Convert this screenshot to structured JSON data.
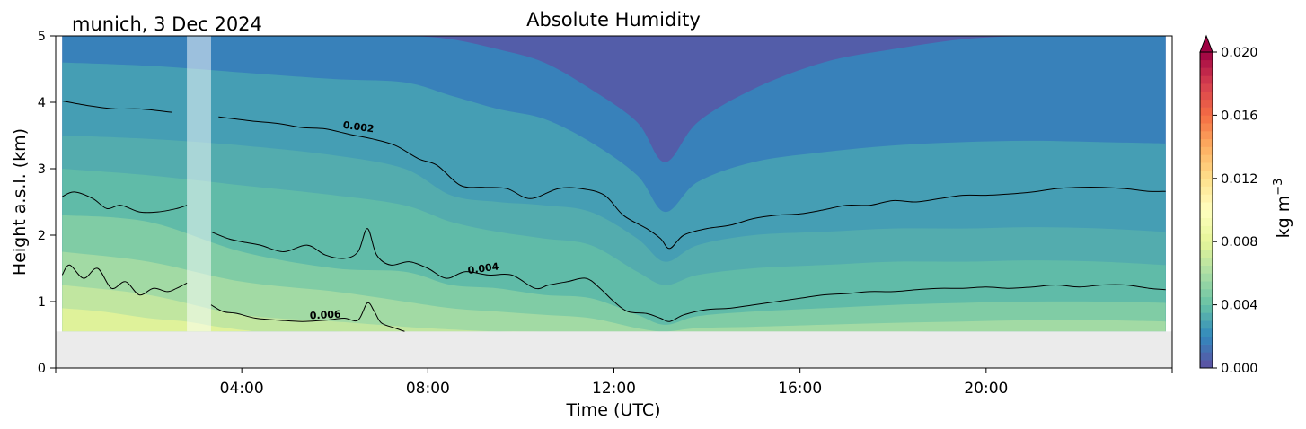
{
  "chart_data": {
    "type": "contourf",
    "title": "Absolute Humidity",
    "subtitle": "munich, 3 Dec 2024",
    "xlabel": "Time (UTC)",
    "ylabel": "Height a.s.l. (km)",
    "xlim": [
      0,
      24
    ],
    "ylim": [
      0,
      5
    ],
    "x_ticks": [
      {
        "x": 4,
        "label": "04:00"
      },
      {
        "x": 8,
        "label": "08:00"
      },
      {
        "x": 12,
        "label": "12:00"
      },
      {
        "x": 16,
        "label": "16:00"
      },
      {
        "x": 20,
        "label": "20:00"
      }
    ],
    "y_ticks": [
      {
        "y": 0,
        "label": "0"
      },
      {
        "y": 1,
        "label": "1"
      },
      {
        "y": 2,
        "label": "2"
      },
      {
        "y": 3,
        "label": "3"
      },
      {
        "y": 4,
        "label": "4"
      },
      {
        "y": 5,
        "label": "5"
      }
    ],
    "data_range_x": [
      0.14,
      23.86
    ],
    "lowest_height_km": 0.55,
    "masked_interval_hours": [
      2.82,
      3.34
    ],
    "no_data_color": "#ebebeb",
    "colormap": "Spectral_r",
    "colorbar": {
      "label": "kg m",
      "label_superscript": "−3",
      "min": 0.0,
      "max": 0.02,
      "extend": "max",
      "ticks": [
        {
          "value": 0.0,
          "label": "0.000"
        },
        {
          "value": 0.004,
          "label": "0.004"
        },
        {
          "value": 0.008,
          "label": "0.008"
        },
        {
          "value": 0.012,
          "label": "0.012"
        },
        {
          "value": 0.016,
          "label": "0.016"
        },
        {
          "value": 0.02,
          "label": "0.020"
        }
      ]
    },
    "contour_lines": [
      {
        "level": 0.002,
        "label": "0.002",
        "label_x": 6.5,
        "label_y": 3.58,
        "x": [
          0.14,
          0.7,
          1.3,
          1.8,
          2.5,
          3.0,
          3.5,
          4.2,
          4.8,
          5.3,
          5.8,
          6.3,
          6.8,
          7.3,
          7.8,
          8.2,
          8.7,
          9.2,
          9.7,
          10.2,
          10.8,
          11.3,
          11.8,
          12.2,
          12.7,
          13.0,
          13.2,
          13.5,
          14.0,
          14.5,
          15.0,
          15.5,
          16.0,
          16.5,
          17.0,
          17.5,
          18.0,
          18.5,
          19.0,
          19.5,
          20.0,
          20.5,
          21.0,
          21.5,
          22.0,
          22.5,
          23.0,
          23.5,
          23.86
        ],
        "y": [
          4.02,
          3.95,
          3.9,
          3.9,
          3.85,
          3.8,
          3.78,
          3.72,
          3.68,
          3.62,
          3.6,
          3.52,
          3.45,
          3.35,
          3.15,
          3.05,
          2.75,
          2.72,
          2.7,
          2.55,
          2.7,
          2.7,
          2.6,
          2.3,
          2.1,
          1.95,
          1.8,
          2.0,
          2.1,
          2.15,
          2.25,
          2.3,
          2.32,
          2.38,
          2.45,
          2.45,
          2.52,
          2.5,
          2.55,
          2.6,
          2.6,
          2.62,
          2.65,
          2.7,
          2.72,
          2.72,
          2.7,
          2.66,
          2.66
        ]
      },
      {
        "level": 0.004,
        "label": "0.004",
        "label_x": 9.2,
        "label_y": 1.45,
        "x": [
          0.14,
          0.4,
          0.8,
          1.1,
          1.4,
          1.8,
          2.2,
          2.6,
          2.82,
          3.34,
          3.7,
          4.0,
          4.4,
          4.9,
          5.4,
          5.8,
          6.2,
          6.5,
          6.7,
          6.9,
          7.2,
          7.6,
          8.0,
          8.4,
          8.8,
          9.3,
          9.8,
          10.3,
          10.6,
          11.0,
          11.4,
          11.7,
          12.0,
          12.3,
          12.7,
          13.0,
          13.2,
          13.5,
          14.0,
          14.5,
          15.0,
          15.5,
          16.0,
          16.5,
          17.0,
          17.5,
          18.0,
          18.5,
          19.0,
          19.5,
          20.0,
          20.5,
          21.0,
          21.5,
          22.0,
          22.5,
          23.0,
          23.5,
          23.86
        ],
        "y": [
          2.58,
          2.65,
          2.55,
          2.4,
          2.45,
          2.35,
          2.35,
          2.4,
          2.45,
          2.05,
          1.95,
          1.9,
          1.85,
          1.75,
          1.85,
          1.7,
          1.65,
          1.75,
          2.1,
          1.7,
          1.55,
          1.6,
          1.5,
          1.35,
          1.45,
          1.4,
          1.4,
          1.2,
          1.25,
          1.3,
          1.35,
          1.2,
          1.0,
          0.85,
          0.82,
          0.75,
          0.7,
          0.8,
          0.88,
          0.9,
          0.95,
          1.0,
          1.05,
          1.1,
          1.12,
          1.15,
          1.15,
          1.18,
          1.2,
          1.2,
          1.22,
          1.2,
          1.22,
          1.25,
          1.22,
          1.25,
          1.25,
          1.2,
          1.18
        ]
      },
      {
        "level": 0.006,
        "label": "0.006",
        "label_x": 5.8,
        "label_y": 0.75,
        "x": [
          0.14,
          0.3,
          0.6,
          0.9,
          1.2,
          1.5,
          1.8,
          2.1,
          2.4,
          2.6,
          2.82,
          3.34,
          3.6,
          3.9,
          4.3,
          4.8,
          5.3,
          5.8,
          6.2,
          6.5,
          6.7,
          6.85,
          7.0,
          7.3,
          7.5
        ],
        "y": [
          1.4,
          1.55,
          1.35,
          1.5,
          1.2,
          1.3,
          1.1,
          1.2,
          1.15,
          1.2,
          1.28,
          0.95,
          0.85,
          0.82,
          0.75,
          0.72,
          0.7,
          0.72,
          0.75,
          0.72,
          0.98,
          0.85,
          0.68,
          0.6,
          0.55
        ]
      }
    ],
    "filled_bands": [
      {
        "upper_value": 0.0015,
        "x": [
          0.14,
          2,
          4,
          6,
          7.5,
          8.5,
          9.5,
          10.5,
          11.5,
          12.5,
          13.1,
          13.8,
          15,
          16.5,
          18,
          19.5,
          21,
          22.5,
          23.86
        ],
        "y": [
          5.0,
          5.0,
          5.0,
          5.0,
          5.0,
          4.95,
          4.8,
          4.6,
          4.2,
          3.7,
          3.1,
          3.7,
          4.2,
          4.6,
          4.8,
          4.95,
          5.0,
          5.0,
          5.0
        ]
      },
      {
        "upper_value": 0.0025,
        "x": [
          0.14,
          2,
          4,
          6,
          7.5,
          8.5,
          9.5,
          10.5,
          11.5,
          12.5,
          13.1,
          13.8,
          15,
          16.5,
          18,
          19.5,
          21,
          22.5,
          23.86
        ],
        "y": [
          4.6,
          4.55,
          4.45,
          4.35,
          4.3,
          4.1,
          3.9,
          3.75,
          3.4,
          2.9,
          2.35,
          2.8,
          3.1,
          3.25,
          3.35,
          3.4,
          3.42,
          3.4,
          3.38
        ]
      },
      {
        "upper_value": 0.003,
        "x": [
          0.14,
          2,
          4,
          6,
          7.5,
          8.5,
          9.5,
          10.5,
          11.5,
          12.5,
          13.1,
          13.8,
          15,
          16.5,
          18,
          19.5,
          21,
          22.5,
          23.86
        ],
        "y": [
          3.5,
          3.45,
          3.35,
          3.2,
          3.0,
          2.6,
          2.5,
          2.45,
          2.35,
          1.95,
          1.6,
          1.85,
          2.0,
          2.05,
          2.1,
          2.1,
          2.12,
          2.1,
          2.05
        ]
      },
      {
        "upper_value": 0.0035,
        "x": [
          0.14,
          2,
          4,
          6,
          7.5,
          8.5,
          9.5,
          10.5,
          11.5,
          12.5,
          13.1,
          13.8,
          15,
          16.5,
          18,
          19.5,
          21,
          22.5,
          23.86
        ],
        "y": [
          3.0,
          2.9,
          2.75,
          2.6,
          2.45,
          2.2,
          2.05,
          1.95,
          1.85,
          1.45,
          1.25,
          1.4,
          1.5,
          1.55,
          1.6,
          1.6,
          1.62,
          1.6,
          1.55
        ]
      },
      {
        "upper_value": 0.0045,
        "x": [
          0.14,
          2,
          4,
          6,
          7.5,
          8.5,
          9.5,
          10.5,
          11.5,
          12.5,
          13.1,
          13.8,
          15,
          16.5,
          18,
          19.5,
          21,
          22.5,
          23.86
        ],
        "y": [
          2.3,
          2.2,
          1.75,
          1.5,
          1.45,
          1.25,
          1.2,
          1.1,
          1.05,
          0.8,
          0.65,
          0.78,
          0.85,
          0.9,
          0.95,
          0.98,
          1.0,
          1.0,
          0.98
        ]
      },
      {
        "upper_value": 0.0055,
        "x": [
          0.14,
          2,
          4,
          6,
          7.5,
          8.5,
          9.5,
          10.5,
          11.5,
          12.5,
          13.1,
          13.8,
          15,
          16.5,
          18,
          19.5,
          21,
          22.5,
          23.86
        ],
        "y": [
          1.75,
          1.6,
          1.3,
          1.15,
          1.0,
          0.9,
          0.85,
          0.8,
          0.75,
          0.6,
          0.55,
          0.6,
          0.62,
          0.65,
          0.68,
          0.7,
          0.72,
          0.72,
          0.7
        ]
      },
      {
        "upper_value": 0.0065,
        "x": [
          0.14,
          2,
          4,
          6,
          7.5,
          8.5,
          9.5,
          10.5,
          11.5,
          12.5,
          13.1,
          13.8,
          15,
          16.5,
          18,
          19.5,
          21,
          22.5,
          23.86
        ],
        "y": [
          1.25,
          1.1,
          0.8,
          0.7,
          0.62,
          0.58,
          0.55,
          0.55,
          0.55,
          0.55,
          0.55,
          0.55,
          0.55,
          0.55,
          0.55,
          0.55,
          0.55,
          0.55,
          0.55
        ]
      },
      {
        "upper_value": 0.0075,
        "x": [
          0.14,
          1,
          2,
          2.8,
          3.5,
          4.2,
          5,
          23.86
        ],
        "y": [
          0.9,
          0.85,
          0.75,
          0.7,
          0.62,
          0.56,
          0.55,
          0.55
        ]
      }
    ]
  }
}
